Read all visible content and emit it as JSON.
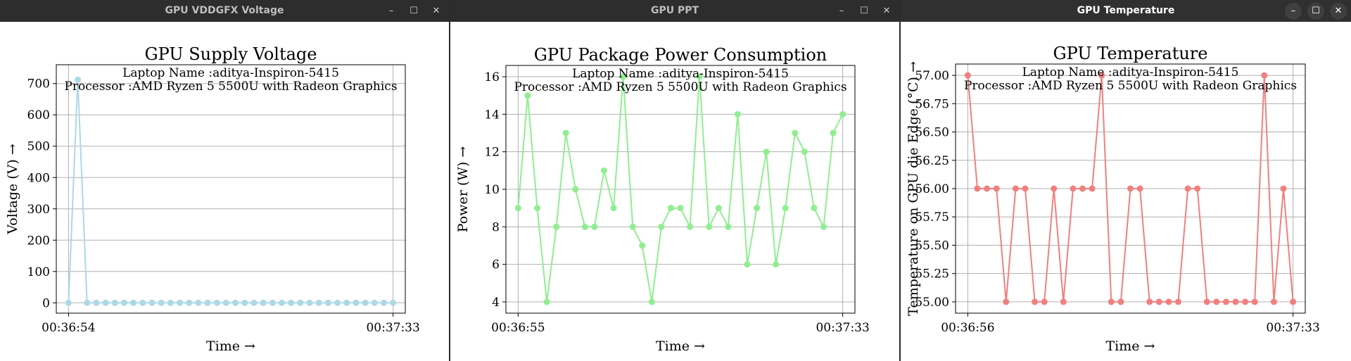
{
  "windows": [
    {
      "title": "GPU VDDGFX Voltage",
      "controls": {
        "minimize": "–",
        "maximize": "☐",
        "close": "✕"
      },
      "chart_data": {
        "type": "line",
        "title": "GPU Supply Voltage",
        "annotations": [
          "Laptop Name :aditya-Inspiron-5415",
          "Processor :AMD Ryzen 5 5500U with Radeon Graphics"
        ],
        "xlabel": "Time →",
        "ylabel": "Voltage (V) →",
        "x_tick_labels": [
          "00:36:54",
          "00:37:33"
        ],
        "y_ticks": [
          0,
          100,
          200,
          300,
          400,
          500,
          600,
          700
        ],
        "y_tick_labels": [
          "0",
          "100",
          "200",
          "300",
          "400",
          "500",
          "600",
          "700"
        ],
        "ylim": [
          -33,
          760
        ],
        "grid": true,
        "series": [
          {
            "color": "#add8e6",
            "values": [
              0,
              712,
              0,
              0,
              0,
              0,
              0,
              0,
              0,
              0,
              0,
              0,
              0,
              0,
              0,
              0,
              0,
              0,
              0,
              0,
              0,
              0,
              0,
              0,
              0,
              0,
              0,
              0,
              0,
              0,
              0,
              0,
              0,
              0,
              0,
              0
            ]
          }
        ]
      }
    },
    {
      "title": "GPU PPT",
      "controls": {
        "minimize": "–",
        "maximize": "☐",
        "close": "✕"
      },
      "chart_data": {
        "type": "line",
        "title": "GPU Package Power Consumption",
        "annotations": [
          "Laptop Name :aditya-Inspiron-5415",
          "Processor :AMD Ryzen 5 5500U with Radeon Graphics"
        ],
        "xlabel": "Time →",
        "ylabel": "Power (W) →",
        "x_tick_labels": [
          "00:36:55",
          "00:37:33"
        ],
        "y_ticks": [
          4,
          6,
          8,
          10,
          12,
          14,
          16
        ],
        "y_tick_labels": [
          "4",
          "6",
          "8",
          "10",
          "12",
          "14",
          "16"
        ],
        "ylim": [
          3.4,
          16.6
        ],
        "grid": true,
        "series": [
          {
            "color": "#90ee90",
            "values": [
              9,
              15,
              9,
              4,
              8,
              13,
              10,
              8,
              8,
              11,
              9,
              16,
              8,
              7,
              4,
              8,
              9,
              9,
              8,
              16,
              8,
              9,
              8,
              14,
              6,
              9,
              12,
              6,
              9,
              13,
              12,
              9,
              8,
              13,
              14
            ]
          }
        ]
      }
    },
    {
      "title": "GPU Temperature",
      "controls": {
        "minimize": "–",
        "maximize": "☐",
        "close": "✕"
      },
      "chart_data": {
        "type": "line",
        "title": "GPU Temperature",
        "annotations": [
          "Laptop Name :aditya-Inspiron-5415",
          "Processor :AMD Ryzen 5 5500U with Radeon Graphics"
        ],
        "xlabel": "Time →",
        "ylabel": "Temperature on GPU die Edge (°C) →",
        "x_tick_labels": [
          "00:36:56",
          "00:37:33"
        ],
        "y_ticks": [
          55.0,
          55.25,
          55.5,
          55.75,
          56.0,
          56.25,
          56.5,
          56.75,
          57.0
        ],
        "y_tick_labels": [
          "55.00",
          "55.25",
          "55.50",
          "55.75",
          "56.00",
          "56.25",
          "56.50",
          "56.75",
          "57.00"
        ],
        "ylim": [
          54.9,
          57.1
        ],
        "grid": true,
        "series": [
          {
            "color": "#f08080",
            "values": [
              57,
              56,
              56,
              56,
              55,
              56,
              56,
              55,
              55,
              56,
              55,
              56,
              56,
              56,
              57,
              55,
              55,
              56,
              56,
              55,
              55,
              55,
              55,
              56,
              56,
              55,
              55,
              55,
              55,
              55,
              55,
              57,
              55,
              56,
              55
            ]
          }
        ]
      }
    }
  ]
}
